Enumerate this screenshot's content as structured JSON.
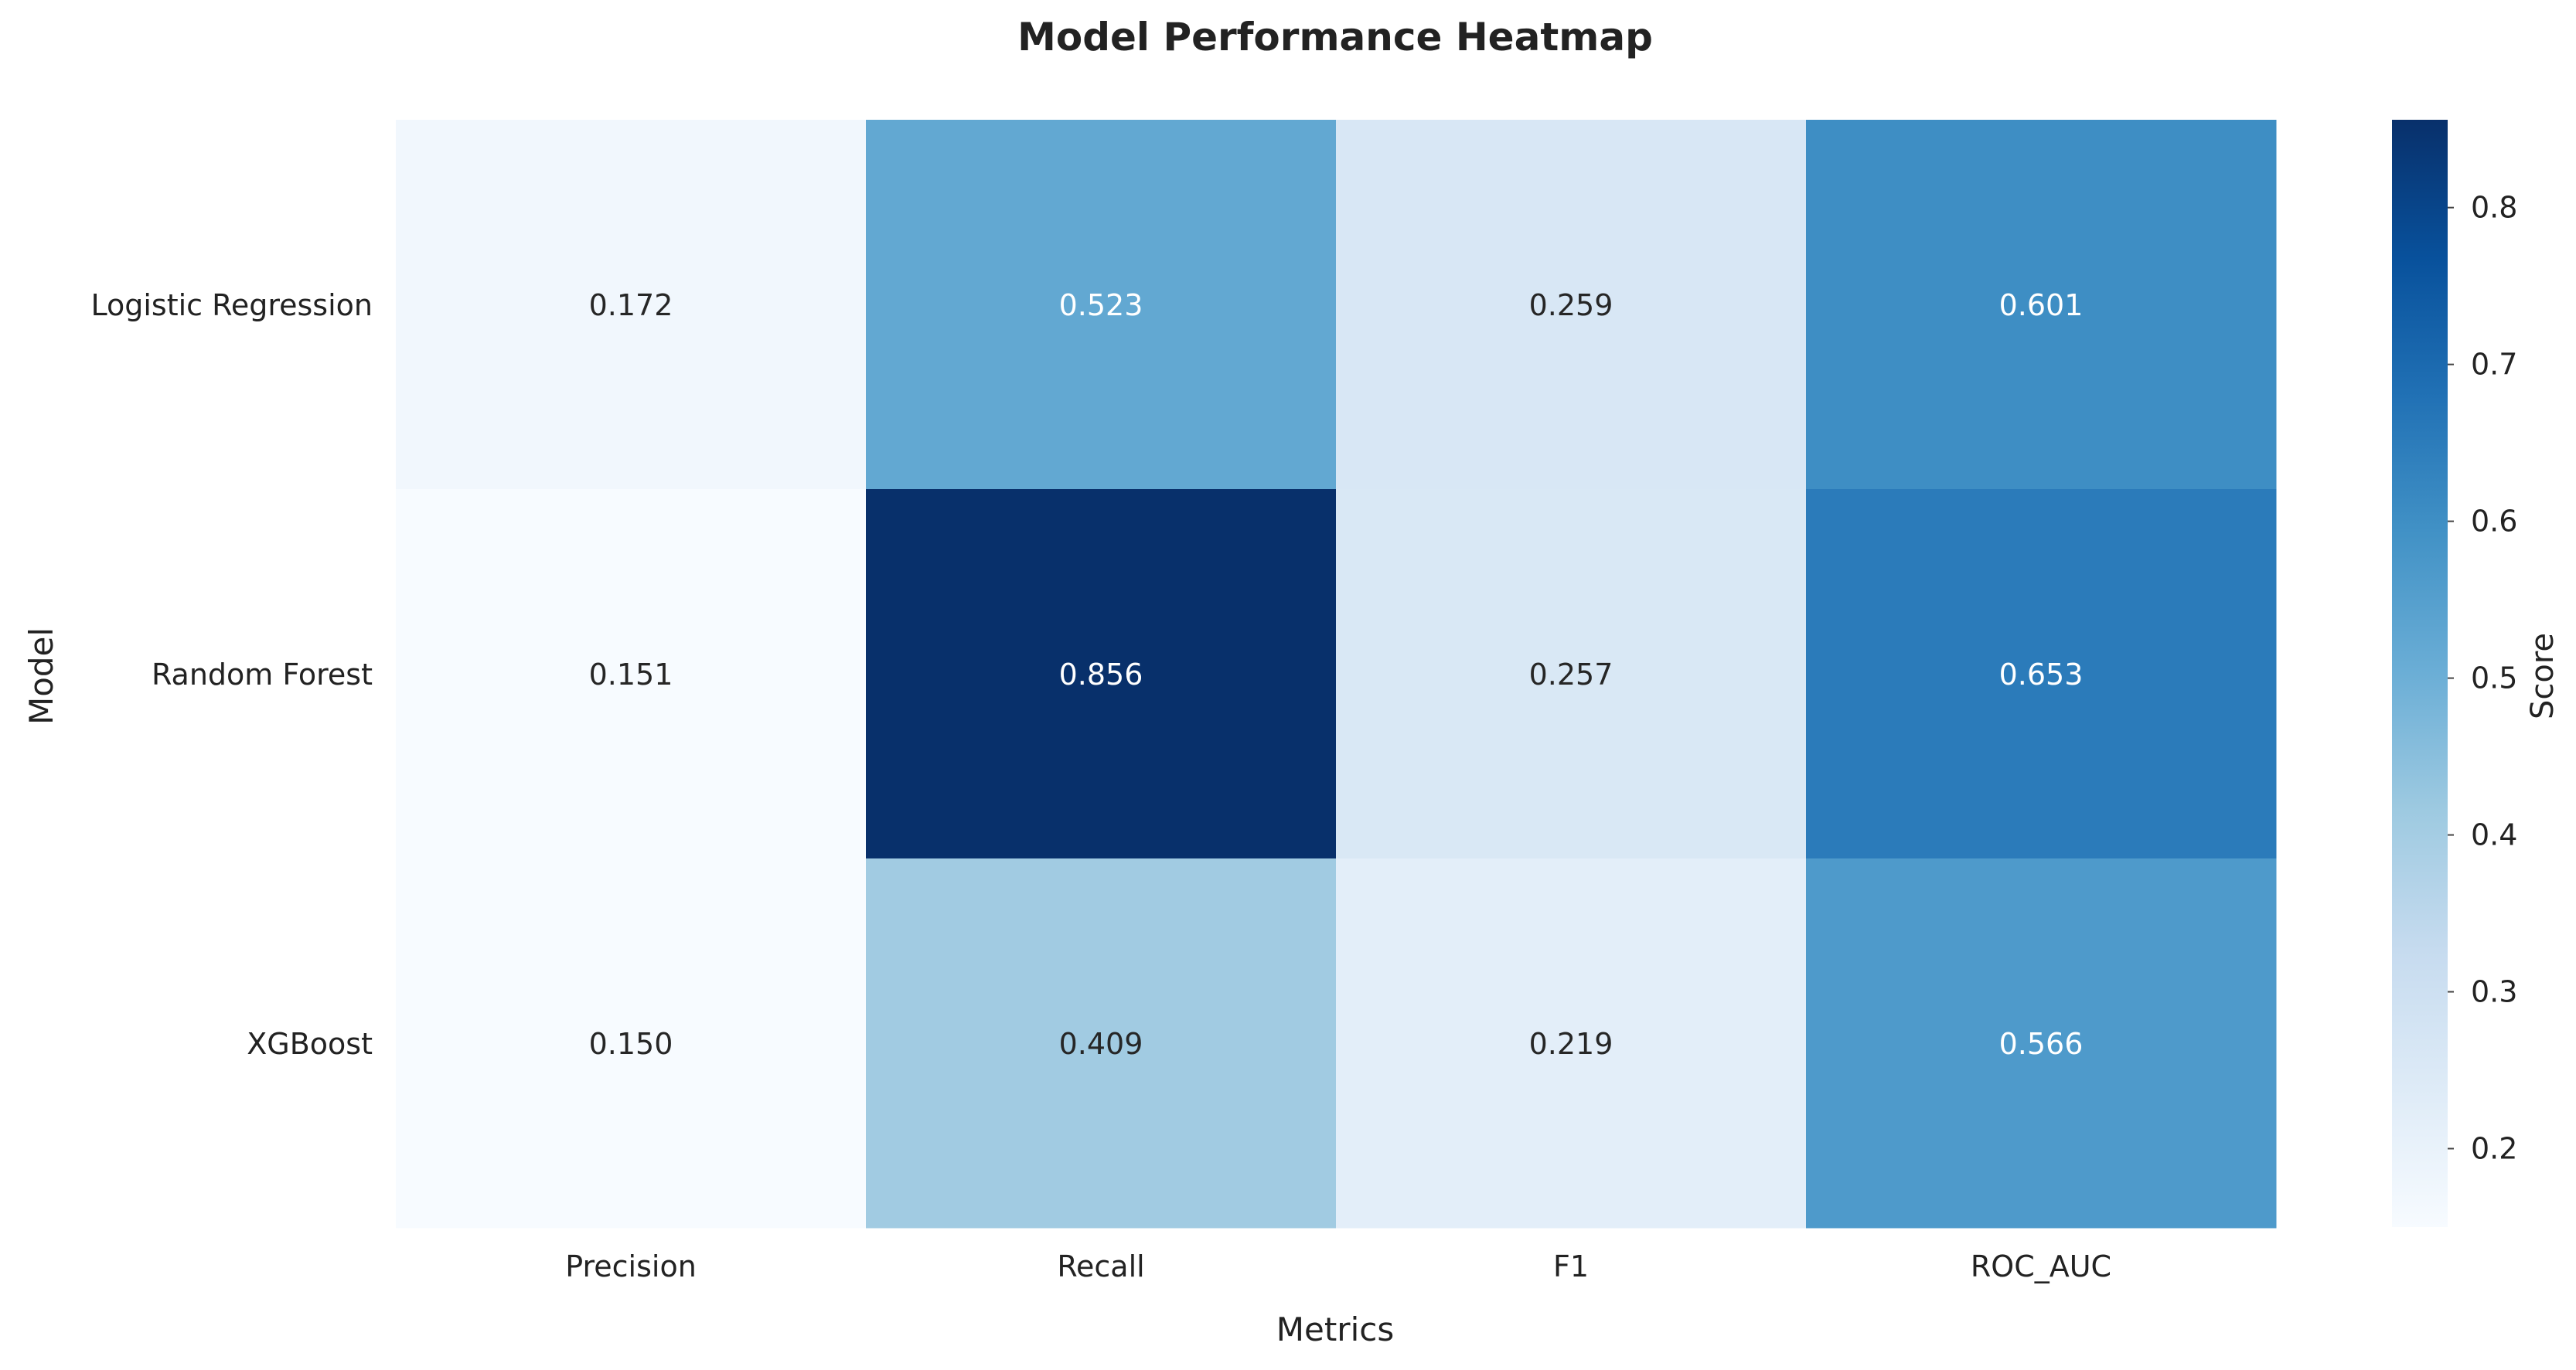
{
  "chart_data": {
    "type": "heatmap",
    "title": "Model Performance Heatmap",
    "xlabel": "Metrics",
    "ylabel": "Model",
    "x_categories": [
      "Precision",
      "Recall",
      "F1",
      "ROC_AUC"
    ],
    "y_categories": [
      "Logistic Regression",
      "Random Forest",
      "XGBoost"
    ],
    "values": [
      [
        0.172,
        0.523,
        0.259,
        0.601
      ],
      [
        0.151,
        0.856,
        0.257,
        0.653
      ],
      [
        0.15,
        0.409,
        0.219,
        0.566
      ]
    ],
    "value_format_decimals": 3,
    "colormap": "Blues",
    "colorbar": {
      "label": "Score",
      "range": [
        0.15,
        0.856
      ],
      "ticks": [
        0.2,
        0.3,
        0.4,
        0.5,
        0.6,
        0.7,
        0.8
      ],
      "tick_labels": [
        "0.2",
        "0.3",
        "0.4",
        "0.5",
        "0.6",
        "0.7",
        "0.8"
      ]
    },
    "grid": false
  }
}
